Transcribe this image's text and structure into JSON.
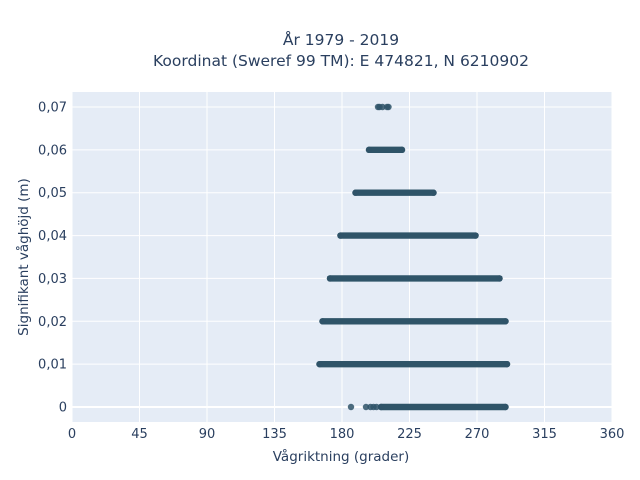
{
  "chart_data": {
    "type": "scatter",
    "title_line1": "År 1979 - 2019",
    "title_line2": "Koordinat (Sweref 99 TM): E 474821, N 6210902",
    "xlabel": "Vågriktning (grader)",
    "ylabel": "Signifikant våghöjd (m)",
    "xlim": [
      0,
      360
    ],
    "ylim": [
      -0.0035,
      0.0735
    ],
    "x_ticks": [
      0,
      45,
      90,
      135,
      180,
      225,
      270,
      315,
      360
    ],
    "x_tick_labels": [
      "0",
      "45",
      "90",
      "135",
      "180",
      "225",
      "270",
      "315",
      "360"
    ],
    "y_ticks": [
      0,
      0.01,
      0.02,
      0.03,
      0.04,
      0.05,
      0.06,
      0.07
    ],
    "y_tick_labels": [
      "0",
      "0,01",
      "0,02",
      "0,03",
      "0,04",
      "0,05",
      "0,06",
      "0,07"
    ],
    "grid": true,
    "marker_color": "#2f5468",
    "background_color": "#e5ecf6",
    "bands": [
      {
        "y": 0.07,
        "x_min": 204,
        "x_max": 211,
        "sparse": true
      },
      {
        "y": 0.06,
        "x_min": 198,
        "x_max": 220
      },
      {
        "y": 0.05,
        "x_min": 189,
        "x_max": 241
      },
      {
        "y": 0.04,
        "x_min": 179,
        "x_max": 269
      },
      {
        "y": 0.03,
        "x_min": 172,
        "x_max": 285
      },
      {
        "y": 0.02,
        "x_min": 167,
        "x_max": 289
      },
      {
        "y": 0.01,
        "x_min": 165,
        "x_max": 290
      },
      {
        "y": 0.0,
        "x_min": 206,
        "x_max": 289
      }
    ],
    "scattered_points": [
      {
        "x": 186,
        "y": 0.0
      },
      {
        "x": 196,
        "y": 0.0
      },
      {
        "x": 199,
        "y": 0.0
      },
      {
        "x": 201,
        "y": 0.0
      },
      {
        "x": 203,
        "y": 0.0
      },
      {
        "x": 205,
        "y": 0.07
      },
      {
        "x": 207,
        "y": 0.07
      },
      {
        "x": 210,
        "y": 0.07
      }
    ]
  }
}
